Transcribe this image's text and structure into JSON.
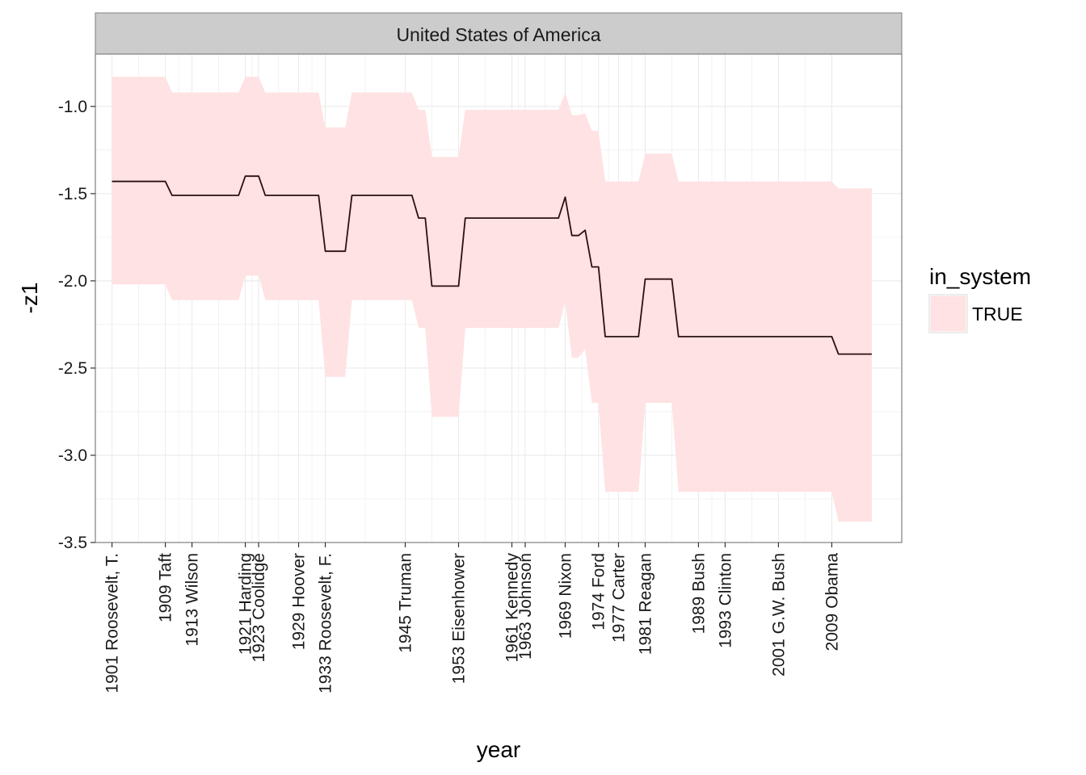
{
  "chart_data": {
    "type": "area",
    "facet": "United States of America",
    "xlabel": "year",
    "ylabel": "-z1",
    "xlim": [
      1898.5,
      2019.5
    ],
    "ylim": [
      -3.5,
      -0.7
    ],
    "y_ticks": [
      -1.0,
      -1.5,
      -2.0,
      -2.5,
      -3.0,
      -3.5
    ],
    "y_tick_labels": [
      "-1.0",
      "-1.5",
      "-2.0",
      "-2.5",
      "-3.0",
      "-3.5"
    ],
    "x_ticks": [
      {
        "year": 1901,
        "label": "1901 Roosevelt, T."
      },
      {
        "year": 1909,
        "label": "1909 Taft"
      },
      {
        "year": 1913,
        "label": "1913 Wilson"
      },
      {
        "year": 1921,
        "label": "1921 Harding"
      },
      {
        "year": 1923,
        "label": "1923 Coolidge"
      },
      {
        "year": 1929,
        "label": "1929 Hoover"
      },
      {
        "year": 1933,
        "label": "1933 Roosevelt, F."
      },
      {
        "year": 1945,
        "label": "1945 Truman"
      },
      {
        "year": 1953,
        "label": "1953 Eisenhower"
      },
      {
        "year": 1961,
        "label": "1961 Kennedy"
      },
      {
        "year": 1963,
        "label": "1963 Johnson"
      },
      {
        "year": 1969,
        "label": "1969 Nixon"
      },
      {
        "year": 1974,
        "label": "1974 Ford"
      },
      {
        "year": 1977,
        "label": "1977 Carter"
      },
      {
        "year": 1981,
        "label": "1981 Reagan"
      },
      {
        "year": 1989,
        "label": "1989 Bush"
      },
      {
        "year": 1993,
        "label": "1993 Clinton"
      },
      {
        "year": 2001,
        "label": "2001 G.W. Bush"
      },
      {
        "year": 2009,
        "label": "2009 Obama"
      }
    ],
    "legend": {
      "title": "in_system",
      "position": "right",
      "entries": [
        {
          "label": "TRUE",
          "color": "#ffe2e3"
        }
      ]
    },
    "colors": {
      "ribbon": "#ffe2e3",
      "line": "#2b0f12",
      "strip": "#cccccc",
      "grid": "#ebebeb"
    },
    "series": [
      {
        "x": [
          1901,
          1909,
          1910,
          1920,
          1921,
          1923,
          1924,
          1932,
          1933,
          1936,
          1937,
          1946,
          1947,
          1948,
          1949,
          1953,
          1954,
          1968,
          1969,
          1970,
          1971,
          1972,
          1973,
          1974,
          1975,
          1980,
          1981,
          1985,
          1986,
          2009,
          2010,
          2015
        ],
        "y": [
          -1.43,
          -1.43,
          -1.51,
          -1.51,
          -1.4,
          -1.4,
          -1.51,
          -1.51,
          -1.83,
          -1.83,
          -1.51,
          -1.51,
          -1.64,
          -1.64,
          -2.03,
          -2.03,
          -1.64,
          -1.64,
          -1.52,
          -1.74,
          -1.74,
          -1.71,
          -1.92,
          -1.92,
          -2.32,
          -2.32,
          -1.99,
          -1.99,
          -2.32,
          -2.32,
          -2.42,
          -2.42
        ],
        "upper": [
          -0.83,
          -0.83,
          -0.92,
          -0.92,
          -0.83,
          -0.83,
          -0.92,
          -0.92,
          -1.12,
          -1.12,
          -0.92,
          -0.92,
          -1.02,
          -1.02,
          -1.29,
          -1.29,
          -1.02,
          -1.02,
          -0.92,
          -1.05,
          -1.05,
          -1.04,
          -1.14,
          -1.14,
          -1.43,
          -1.43,
          -1.27,
          -1.27,
          -1.43,
          -1.43,
          -1.47,
          -1.47
        ],
        "lower": [
          -2.02,
          -2.02,
          -2.11,
          -2.11,
          -1.97,
          -1.97,
          -2.11,
          -2.11,
          -2.55,
          -2.55,
          -2.11,
          -2.11,
          -2.27,
          -2.27,
          -2.78,
          -2.78,
          -2.27,
          -2.27,
          -2.12,
          -2.44,
          -2.44,
          -2.39,
          -2.7,
          -2.7,
          -3.21,
          -3.21,
          -2.7,
          -2.7,
          -3.21,
          -3.21,
          -3.38,
          -3.38
        ]
      }
    ]
  }
}
